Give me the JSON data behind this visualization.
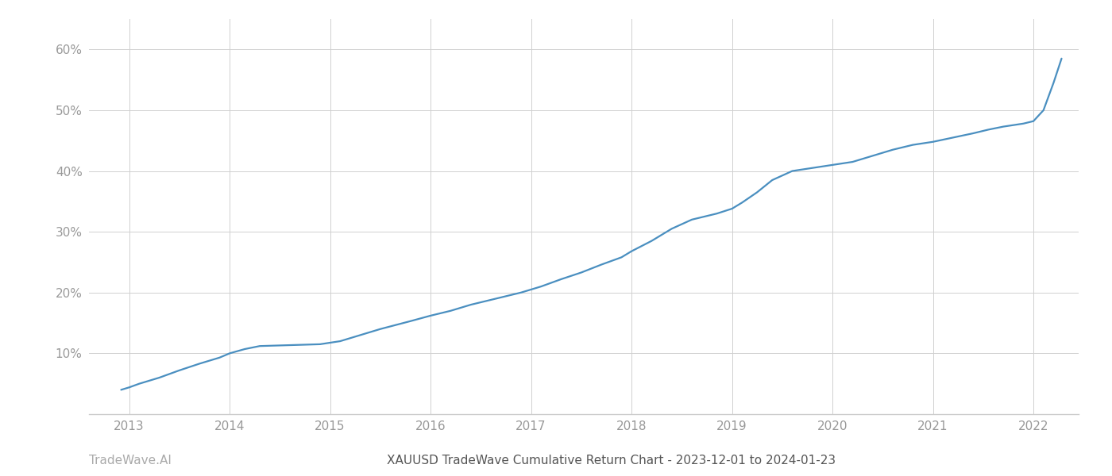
{
  "title": "XAUUSD TradeWave Cumulative Return Chart - 2023-12-01 to 2024-01-23",
  "watermark": "TradeWave.AI",
  "line_color": "#4a8fc0",
  "background_color": "#ffffff",
  "grid_color": "#d0d0d0",
  "x_years": [
    2013,
    2014,
    2015,
    2016,
    2017,
    2018,
    2019,
    2020,
    2021,
    2022
  ],
  "y_ticks": [
    0.1,
    0.2,
    0.3,
    0.4,
    0.5,
    0.6
  ],
  "y_tick_labels": [
    "10%",
    "20%",
    "30%",
    "40%",
    "50%",
    "60%"
  ],
  "data_x": [
    2012.92,
    2013.0,
    2013.1,
    2013.3,
    2013.5,
    2013.7,
    2013.9,
    2014.0,
    2014.15,
    2014.3,
    2014.5,
    2014.7,
    2014.9,
    2015.1,
    2015.3,
    2015.5,
    2015.8,
    2016.0,
    2016.2,
    2016.4,
    2016.7,
    2016.9,
    2017.1,
    2017.3,
    2017.5,
    2017.7,
    2017.9,
    2018.0,
    2018.2,
    2018.4,
    2018.6,
    2018.85,
    2019.0,
    2019.1,
    2019.25,
    2019.4,
    2019.6,
    2019.8,
    2020.0,
    2020.2,
    2020.4,
    2020.6,
    2020.8,
    2021.0,
    2021.2,
    2021.4,
    2021.55,
    2021.7,
    2021.9,
    2022.0,
    2022.1,
    2022.2,
    2022.28
  ],
  "data_y": [
    0.04,
    0.044,
    0.05,
    0.06,
    0.072,
    0.083,
    0.093,
    0.1,
    0.107,
    0.112,
    0.113,
    0.114,
    0.115,
    0.12,
    0.13,
    0.14,
    0.153,
    0.162,
    0.17,
    0.18,
    0.192,
    0.2,
    0.21,
    0.222,
    0.233,
    0.246,
    0.258,
    0.268,
    0.285,
    0.305,
    0.32,
    0.33,
    0.338,
    0.348,
    0.365,
    0.385,
    0.4,
    0.405,
    0.41,
    0.415,
    0.425,
    0.435,
    0.443,
    0.448,
    0.455,
    0.462,
    0.468,
    0.473,
    0.478,
    0.482,
    0.5,
    0.545,
    0.585
  ],
  "xlim": [
    2012.6,
    2022.45
  ],
  "ylim": [
    0.0,
    0.65
  ],
  "tick_color": "#999999",
  "title_color": "#555555",
  "watermark_color": "#aaaaaa",
  "line_width": 1.6,
  "title_fontsize": 11,
  "tick_fontsize": 11,
  "watermark_fontsize": 11
}
